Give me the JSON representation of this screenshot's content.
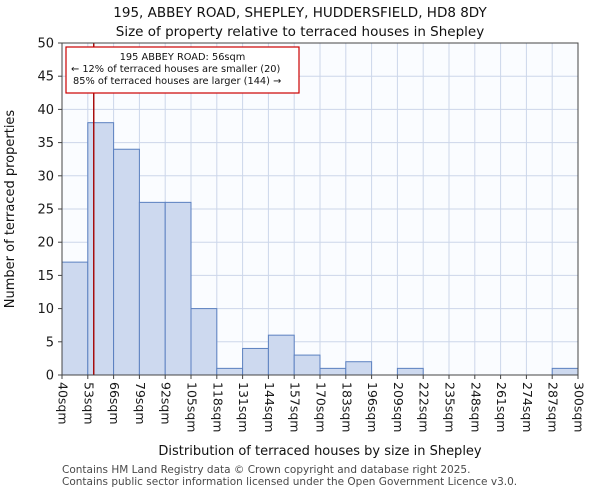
{
  "header": {
    "title": "195, ABBEY ROAD, SHEPLEY, HUDDERSFIELD, HD8 8DY",
    "subtitle": "Size of property relative to terraced houses in Shepley"
  },
  "chart_data": {
    "type": "bar",
    "title": "Size of property relative to terraced houses in Shepley",
    "xlabel": "Distribution of terraced houses by size in Shepley",
    "ylabel": "Number of terraced properties",
    "x_tick_labels": [
      "40sqm",
      "53sqm",
      "66sqm",
      "79sqm",
      "92sqm",
      "105sqm",
      "118sqm",
      "131sqm",
      "144sqm",
      "157sqm",
      "170sqm",
      "183sqm",
      "196sqm",
      "209sqm",
      "222sqm",
      "235sqm",
      "248sqm",
      "261sqm",
      "274sqm",
      "287sqm",
      "300sqm"
    ],
    "y_ticks": [
      0,
      5,
      10,
      15,
      20,
      25,
      30,
      35,
      40,
      45,
      50
    ],
    "ylim": [
      0,
      50
    ],
    "xlim_sqm": [
      40,
      300
    ],
    "bin_width_sqm": 13,
    "values": [
      17,
      38,
      34,
      26,
      26,
      10,
      1,
      4,
      6,
      3,
      1,
      2,
      0,
      1,
      0,
      0,
      0,
      0,
      0,
      1
    ],
    "marker_value_sqm": 56,
    "annotation": {
      "line1": "195 ABBEY ROAD: 56sqm",
      "line2": "← 12% of terraced houses are smaller (20)",
      "line3": "85% of terraced houses are larger (144) →"
    },
    "grid": true,
    "legend": null,
    "colors": {
      "bar_fill": "#cdd9ef",
      "bar_stroke": "#5b80c0",
      "marker_line": "#a40000",
      "annotation_border": "#cc0000",
      "grid": "#ccd6ea",
      "plot_bg": "#fafcff",
      "axis": "#444444"
    }
  },
  "footer": {
    "line1": "Contains HM Land Registry data © Crown copyright and database right 2025.",
    "line2": "Contains public sector information licensed under the Open Government Licence v3.0."
  }
}
